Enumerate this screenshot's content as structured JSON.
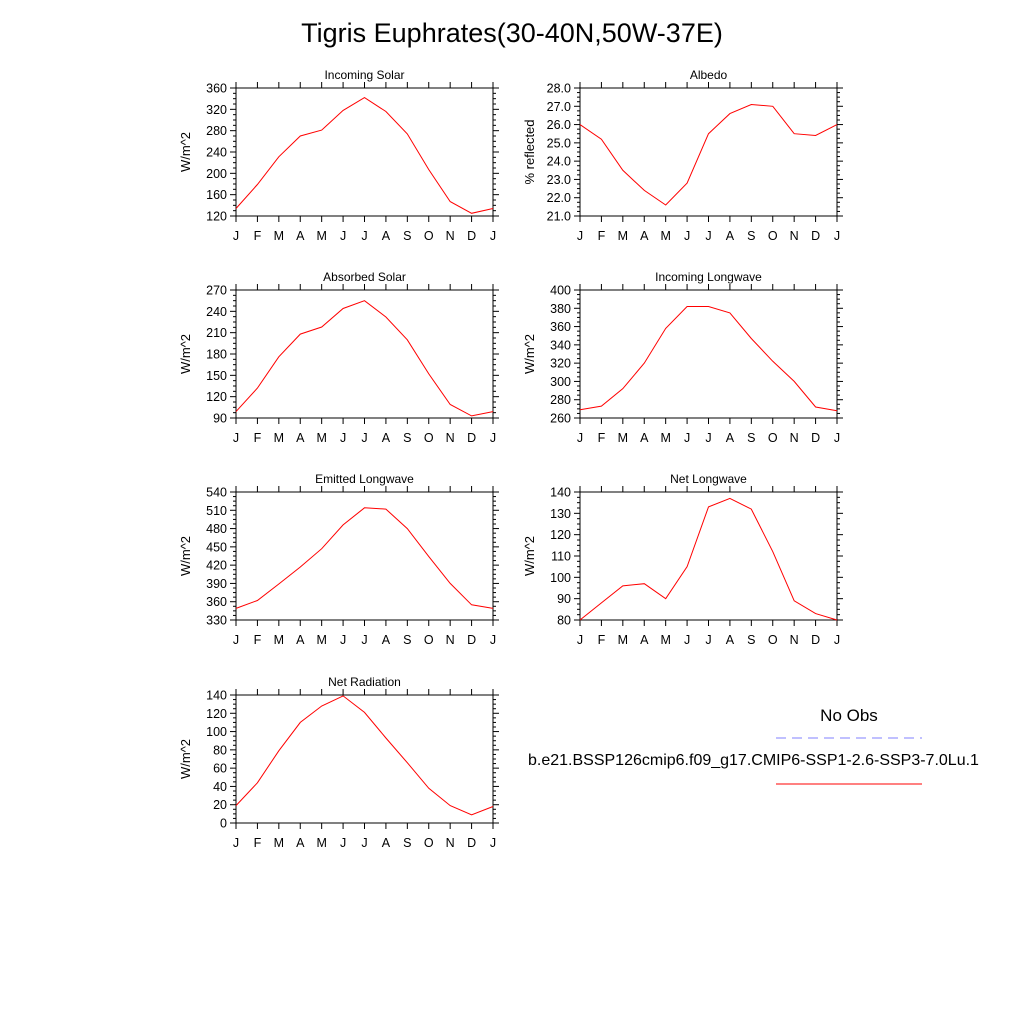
{
  "title": "Tigris Euphrates(30-40N,50W-37E)",
  "legend": {
    "obs_label": "No Obs",
    "model_label": "b.e21.BSSP126cmip6.f09_g17.CMIP6-SSP1-2.6-SSP3-7.0Lu.1",
    "obs_color": "#8080ff",
    "model_color": "#ff0000"
  },
  "chart_data": [
    {
      "type": "line",
      "title": "Incoming Solar",
      "ylabel": "W/m^2",
      "categories": [
        "J",
        "F",
        "M",
        "A",
        "M",
        "J",
        "J",
        "A",
        "S",
        "O",
        "N",
        "D",
        "J"
      ],
      "ylim": [
        120,
        360
      ],
      "yticks": [
        "120",
        "160",
        "200",
        "240",
        "280",
        "320",
        "360"
      ],
      "values": [
        134,
        179,
        231,
        270,
        281,
        318,
        342,
        316,
        274,
        207,
        147,
        125,
        134
      ],
      "line_color": "#ff0000"
    },
    {
      "type": "line",
      "title": "Albedo",
      "ylabel": "% reflected",
      "categories": [
        "J",
        "F",
        "M",
        "A",
        "M",
        "J",
        "J",
        "A",
        "S",
        "O",
        "N",
        "D",
        "J"
      ],
      "ylim": [
        21.0,
        28.0
      ],
      "yticks": [
        "21.0",
        "22.0",
        "23.0",
        "24.0",
        "25.0",
        "26.0",
        "27.0",
        "28.0"
      ],
      "values": [
        26.0,
        25.2,
        23.5,
        22.4,
        21.6,
        22.8,
        25.5,
        26.6,
        27.1,
        27.0,
        25.5,
        25.4,
        26.0
      ],
      "line_color": "#ff0000"
    },
    {
      "type": "line",
      "title": "Absorbed Solar",
      "ylabel": "W/m^2",
      "categories": [
        "J",
        "F",
        "M",
        "A",
        "M",
        "J",
        "J",
        "A",
        "S",
        "O",
        "N",
        "D",
        "J"
      ],
      "ylim": [
        90,
        270
      ],
      "yticks": [
        "90",
        "120",
        "150",
        "180",
        "210",
        "240",
        "270"
      ],
      "values": [
        99,
        132,
        176,
        208,
        218,
        244,
        255,
        232,
        200,
        152,
        109,
        93,
        99
      ],
      "line_color": "#ff0000"
    },
    {
      "type": "line",
      "title": "Incoming Longwave",
      "ylabel": "W/m^2",
      "categories": [
        "J",
        "F",
        "M",
        "A",
        "M",
        "J",
        "J",
        "A",
        "S",
        "O",
        "N",
        "D",
        "J"
      ],
      "ylim": [
        260,
        400
      ],
      "yticks": [
        "260",
        "280",
        "300",
        "320",
        "340",
        "360",
        "380",
        "400"
      ],
      "values": [
        269,
        273,
        292,
        320,
        358,
        382,
        382,
        375,
        347,
        322,
        300,
        272,
        268
      ],
      "line_color": "#ff0000"
    },
    {
      "type": "line",
      "title": "Emitted Longwave",
      "ylabel": "W/m^2",
      "categories": [
        "J",
        "F",
        "M",
        "A",
        "M",
        "J",
        "J",
        "A",
        "S",
        "O",
        "N",
        "D",
        "J"
      ],
      "ylim": [
        330,
        540
      ],
      "yticks": [
        "330",
        "360",
        "390",
        "420",
        "450",
        "480",
        "510",
        "540"
      ],
      "values": [
        349,
        362,
        389,
        417,
        447,
        486,
        514,
        512,
        480,
        434,
        390,
        355,
        349
      ],
      "line_color": "#ff0000"
    },
    {
      "type": "line",
      "title": "Net Longwave",
      "ylabel": "W/m^2",
      "categories": [
        "J",
        "F",
        "M",
        "A",
        "M",
        "J",
        "J",
        "A",
        "S",
        "O",
        "N",
        "D",
        "J"
      ],
      "ylim": [
        80,
        140
      ],
      "yticks": [
        "80",
        "90",
        "100",
        "110",
        "120",
        "130",
        "140"
      ],
      "values": [
        80,
        88,
        96,
        97,
        90,
        105,
        133,
        137,
        132,
        112,
        89,
        83,
        80
      ],
      "line_color": "#ff0000"
    },
    {
      "type": "line",
      "title": "Net Radiation",
      "ylabel": "W/m^2",
      "categories": [
        "J",
        "F",
        "M",
        "A",
        "M",
        "J",
        "J",
        "A",
        "S",
        "O",
        "N",
        "D",
        "J"
      ],
      "ylim": [
        0,
        140
      ],
      "yticks": [
        "0",
        "20",
        "40",
        "60",
        "80",
        "100",
        "120",
        "140"
      ],
      "values": [
        19,
        44,
        79,
        110,
        128,
        139,
        121,
        93,
        66,
        38,
        19,
        9,
        18
      ],
      "line_color": "#ff0000"
    }
  ]
}
